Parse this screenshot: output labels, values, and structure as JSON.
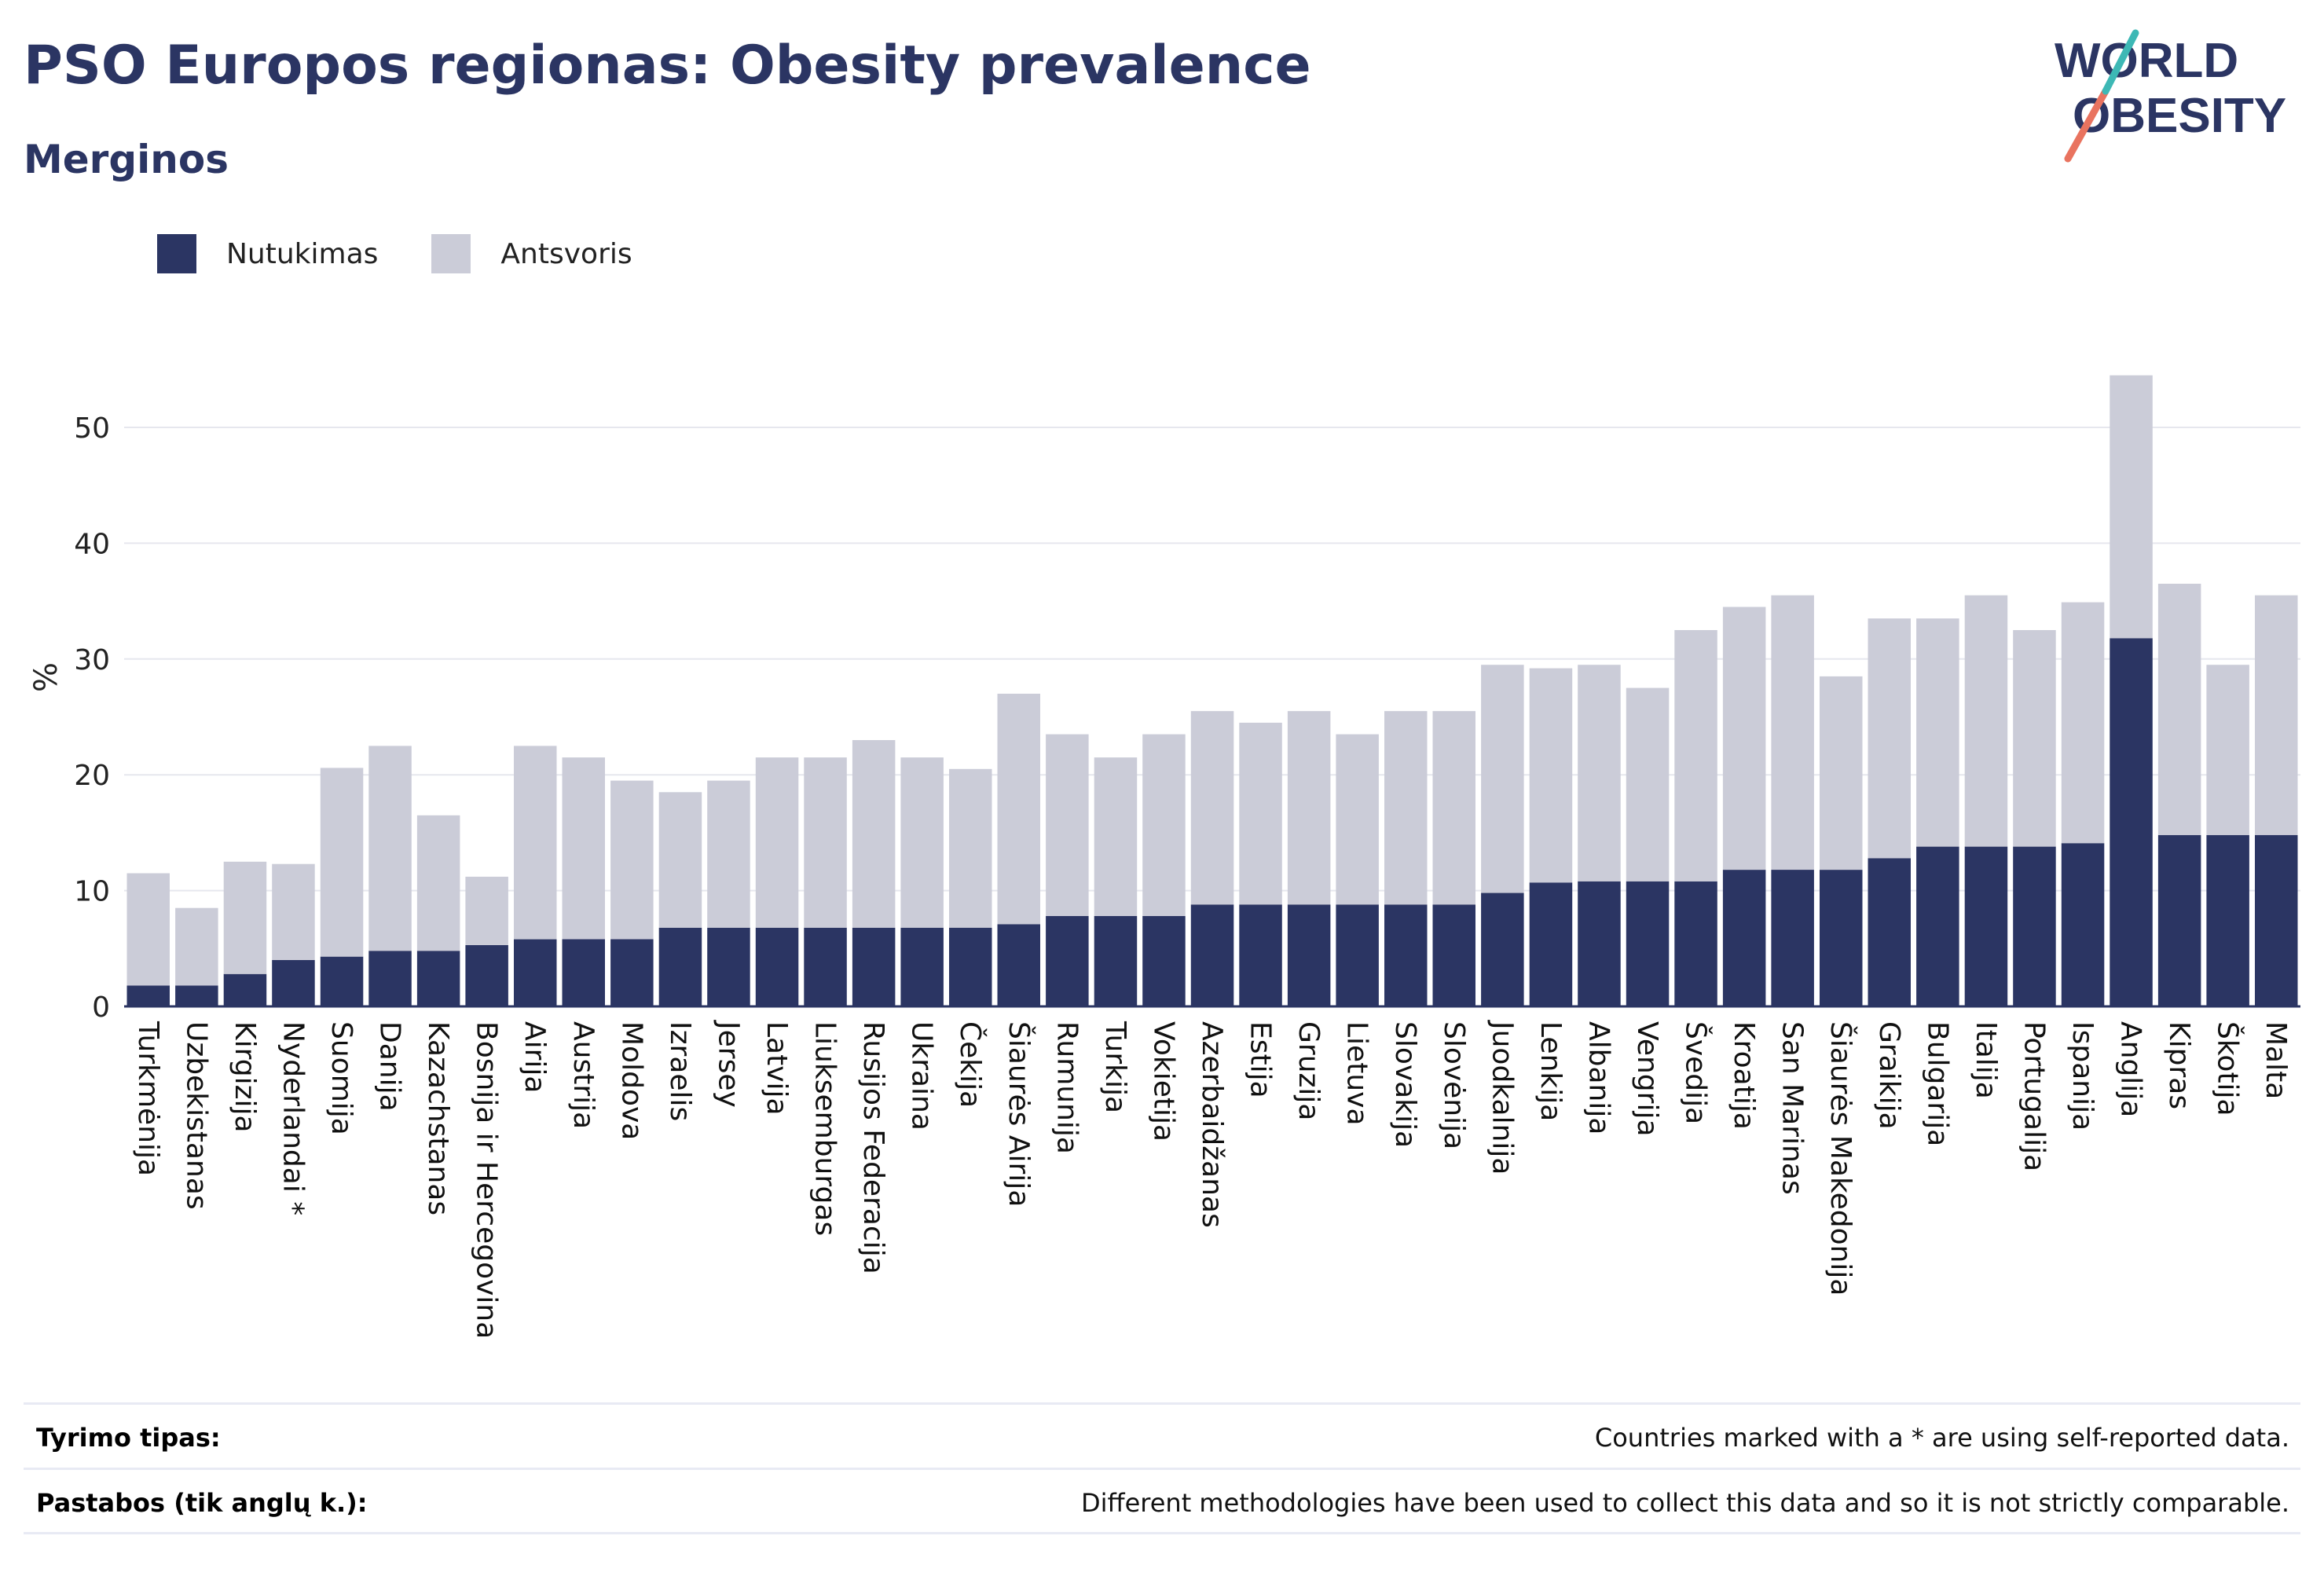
{
  "title": "PSO Europos regionas: Obesity prevalence",
  "subtitle": "Merginos",
  "colors": {
    "obesity": "#2b3563",
    "overweight": "#cbccd8",
    "title": "#2b3563",
    "logo_teal": "#3db8b5",
    "logo_coral": "#e9735f"
  },
  "logo": {
    "line1": "WORLD",
    "line2": "OBESITY"
  },
  "legend": [
    {
      "label": "Nutukimas",
      "color": "#2b3563"
    },
    {
      "label": "Antsvoris",
      "color": "#cbccd8"
    }
  ],
  "chart_data": {
    "type": "bar",
    "stacked": true,
    "ylabel": "%",
    "xlabel": "",
    "ylim": [
      0,
      55
    ],
    "yticks": [
      0,
      10,
      20,
      30,
      40,
      50
    ],
    "grid": true,
    "legend_position": "top-left",
    "categories": [
      "Turkmėnija",
      "Uzbekistanas",
      "Kirgizija",
      "Nyderlandai *",
      "Suomija",
      "Danija",
      "Kazachstanas",
      "Bosnija ir Hercegovina",
      "Airija",
      "Austrija",
      "Moldova",
      "Izraelis",
      "Jersey",
      "Latvija",
      "Liuksemburgas",
      "Rusijos Federacija",
      "Ukraina",
      "Čekija",
      "Šiaurės Airija",
      "Rumunija",
      "Turkija",
      "Vokietija",
      "Azerbaidžanas",
      "Estija",
      "Gruzija",
      "Lietuva",
      "Slovakija",
      "Slovėnija",
      "Juodkalnija",
      "Lenkija",
      "Albanija",
      "Vengrija",
      "Švedija",
      "Kroatija",
      "San Marinas",
      "Šiaurės Makedonija",
      "Graikija",
      "Bulgarija",
      "Italija",
      "Portugalija",
      "Ispanija",
      "Anglija",
      "Kipras",
      "Škotija",
      "Malta"
    ],
    "series": [
      {
        "name": "Nutukimas",
        "values": [
          1.8,
          1.8,
          2.8,
          4.0,
          4.3,
          4.8,
          4.8,
          5.3,
          5.8,
          5.8,
          5.8,
          6.8,
          6.8,
          6.8,
          6.8,
          6.8,
          6.8,
          6.8,
          7.1,
          7.8,
          7.8,
          7.8,
          8.8,
          8.8,
          8.8,
          8.8,
          8.8,
          8.8,
          9.8,
          10.7,
          10.8,
          10.8,
          10.8,
          11.8,
          11.8,
          11.8,
          12.8,
          13.8,
          13.8,
          13.8,
          14.1,
          31.8,
          14.8,
          14.8,
          14.8
        ]
      },
      {
        "name": "Antsvoris",
        "values": [
          9.7,
          6.7,
          9.7,
          8.3,
          16.3,
          17.7,
          11.7,
          5.9,
          16.7,
          15.7,
          13.7,
          11.7,
          12.7,
          14.7,
          14.7,
          16.2,
          14.7,
          13.7,
          19.9,
          15.7,
          13.7,
          15.7,
          16.7,
          15.7,
          16.7,
          14.7,
          16.7,
          16.7,
          19.7,
          18.5,
          18.7,
          16.7,
          21.7,
          22.7,
          23.7,
          16.7,
          20.7,
          19.7,
          21.7,
          18.7,
          20.8,
          22.7,
          21.7,
          14.7,
          20.7
        ]
      }
    ]
  },
  "footer": [
    {
      "label": "Tyrimo tipas:",
      "value": "Countries marked with a * are using self-reported data."
    },
    {
      "label": "Pastabos (tik anglų k.):",
      "value": "Different methodologies have been used to collect this data and so it is not strictly comparable."
    }
  ]
}
